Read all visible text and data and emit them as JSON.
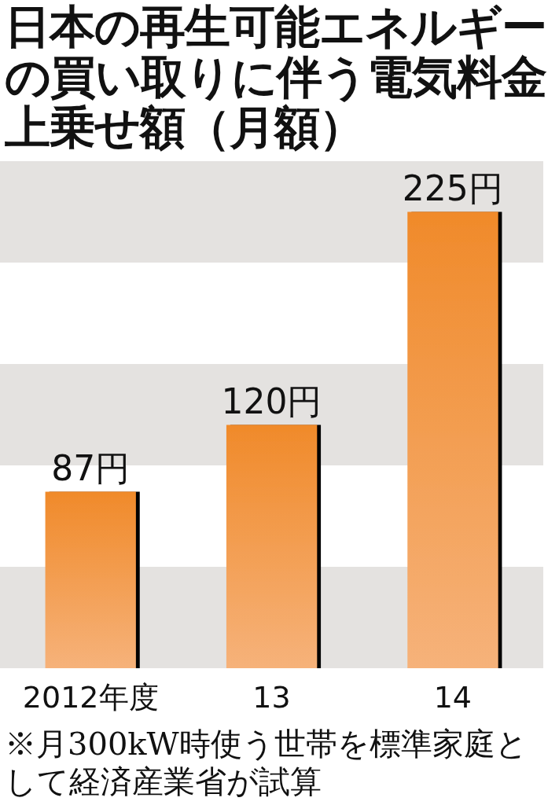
{
  "chart_data": {
    "type": "bar",
    "title": "日本の再生可能エネルギーの買い取りに伴う電気料金上乗せ額（月額）",
    "categories": [
      "2012年度",
      "13",
      "14"
    ],
    "values": [
      87,
      120,
      225
    ],
    "value_labels": [
      "87円",
      "120円",
      "225円"
    ],
    "color": "#f08a2a",
    "ylim": [
      0,
      250
    ],
    "tick_labels": "x",
    "bands": [
      {
        "axis": "y",
        "from": 0,
        "to": 50,
        "color": "#e4e2e0"
      },
      {
        "axis": "y",
        "from": 100,
        "to": 150,
        "color": "#e4e2e0"
      },
      {
        "axis": "y",
        "from": 200,
        "to": 250,
        "color": "#e4e2e0"
      }
    ],
    "annotations": [
      "※月300kW時使う世帯を標準家庭として経済産業省が試算"
    ]
  }
}
